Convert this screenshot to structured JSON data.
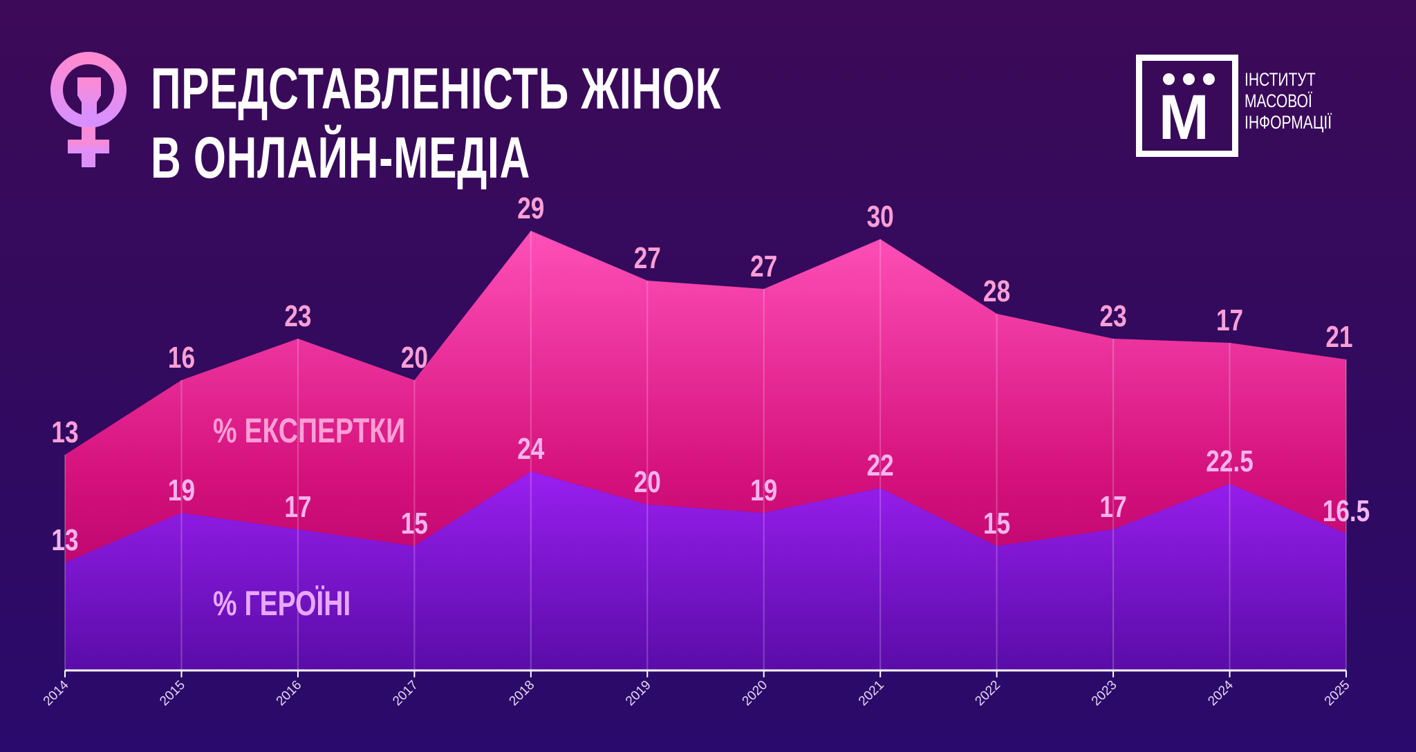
{
  "title": {
    "line1": "ПРЕДСТАВЛЕНІСТЬ ЖІНОК",
    "line2": "В ОНЛАЙН-МЕДІА"
  },
  "logo": {
    "letter": "М",
    "line1": "ІНСТИТУТ",
    "line2": "МАСОВОЇ",
    "line3": "ІНФОРМАЦІЇ"
  },
  "chart_data": {
    "type": "area",
    "stacked": true,
    "x": [
      "2014",
      "2015",
      "2016",
      "2017",
      "2018",
      "2019",
      "2020",
      "2021",
      "2022",
      "2023",
      "2024",
      "2025"
    ],
    "series": [
      {
        "name": "% ГЕРОЇНІ",
        "color": "#8a1ee0",
        "values": [
          13,
          19,
          17,
          15,
          24,
          20,
          19,
          22,
          15,
          17,
          22.5,
          16.5
        ]
      },
      {
        "name": "% ЕКСПЕРТКИ",
        "color": "#ff47ad",
        "values": [
          13,
          16,
          23,
          20,
          29,
          27,
          27,
          30,
          28,
          23,
          17,
          21
        ]
      }
    ],
    "grid": "vertical",
    "legend": "inline-labels"
  }
}
